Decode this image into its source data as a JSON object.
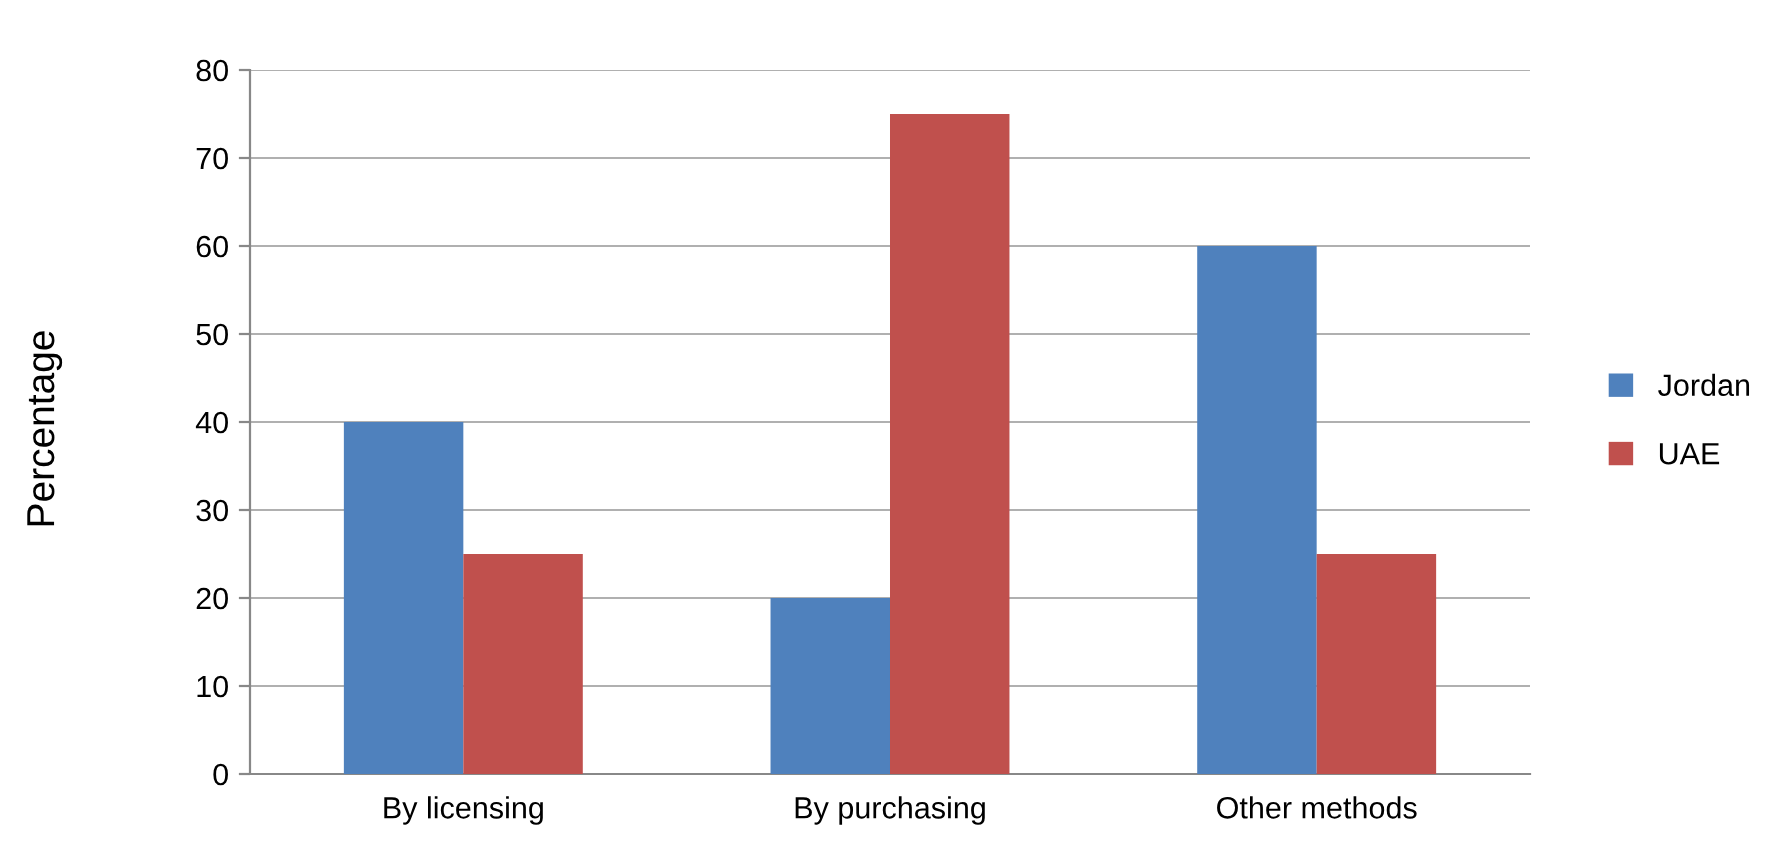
{
  "chart_data": {
    "type": "bar",
    "ylabel": "Percentage",
    "categories": [
      "By licensing",
      "By purchasing",
      "Other methods"
    ],
    "series": [
      {
        "name": "Jordan",
        "color": "#4f81bd",
        "values": [
          40,
          20,
          60
        ]
      },
      {
        "name": "UAE",
        "color": "#c0504d",
        "values": [
          25,
          75,
          25
        ]
      }
    ],
    "ylim": [
      0,
      80
    ],
    "yticks": [
      0,
      10,
      20,
      30,
      40,
      50,
      60,
      70,
      80
    ],
    "grid": "y",
    "legend": "right"
  }
}
